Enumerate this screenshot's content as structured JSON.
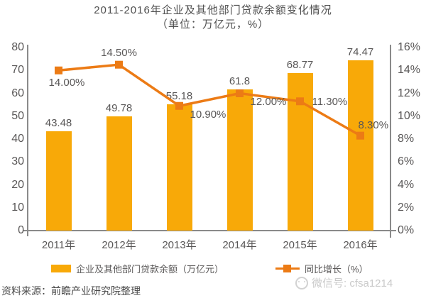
{
  "title": "2011-2016年企业及其他部门贷款余额变化情况",
  "subtitle": "（单位：万亿元，%）",
  "source": "资料来源：前瞻产业研究院整理",
  "watermark": "微信号: cfsa1214",
  "colors": {
    "bar": "#F8A908",
    "line": "#EC7B15",
    "axis": "#8A8A8A",
    "label_text": "#595757",
    "title_text": "#4F4F4F",
    "watermark": "#C9C9C9"
  },
  "legend": [
    {
      "label": "企业及其他部门贷款余额（万亿元）",
      "swatch": "bar"
    },
    {
      "label": "同比增长（%）",
      "swatch": "line"
    }
  ],
  "chart_data": {
    "type": "bar",
    "combo": "bar+line",
    "title": "2011-2016年企业及其他部门贷款余额变化情况",
    "subtitle": "（单位：万亿元，%）",
    "categories": [
      "2011年",
      "2012年",
      "2013年",
      "2014年",
      "2015年",
      "2016年"
    ],
    "series": [
      {
        "name": "企业及其他部门贷款余额（万亿元）",
        "type": "bar",
        "axis": "left",
        "values": [
          43.48,
          49.78,
          55.18,
          61.8,
          68.77,
          74.47
        ],
        "labels": [
          "43.48",
          "49.78",
          "55.18",
          "61.8",
          "68.77",
          "74.47"
        ]
      },
      {
        "name": "同比增长（%）",
        "type": "line",
        "axis": "right",
        "values": [
          14.0,
          14.5,
          10.9,
          12.0,
          11.3,
          8.3
        ],
        "labels": [
          "14.00%",
          "14.50%",
          "10.90%",
          "12.00%",
          "11.30%",
          "8.30%"
        ]
      }
    ],
    "left_axis": {
      "min": 0,
      "max": 80,
      "ticks": [
        "0",
        "10",
        "20",
        "30",
        "40",
        "50",
        "60",
        "70",
        "80"
      ]
    },
    "right_axis": {
      "min": 0,
      "max": 16,
      "ticks": [
        "0%",
        "2%",
        "4%",
        "6%",
        "8%",
        "10%",
        "12%",
        "14%",
        "16%"
      ]
    },
    "grid": false,
    "legend_position": "bottom"
  }
}
